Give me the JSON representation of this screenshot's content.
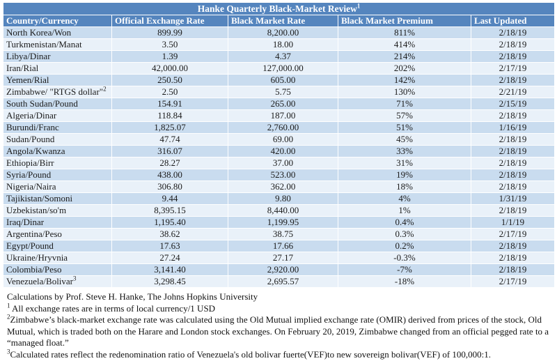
{
  "title": {
    "text": "Hanke Quarterly Black-Market Review",
    "footnote_ref": "1"
  },
  "table": {
    "columns": [
      "Country/Currency",
      "Official Exchange Rate",
      "Black Market Rate",
      "Black Market Premium",
      "Last Updated"
    ],
    "rows": [
      {
        "country": "North Korea/Won",
        "official": "899.99",
        "black": "8,200.00",
        "premium": "811%",
        "updated": "2/18/19"
      },
      {
        "country": "Turkmenistan/Manat",
        "official": "3.50",
        "black": "18.00",
        "premium": "414%",
        "updated": "2/18/19"
      },
      {
        "country": "Libya/Dinar",
        "official": "1.39",
        "black": "4.37",
        "premium": "214%",
        "updated": "2/18/19"
      },
      {
        "country": "Iran/Rial",
        "official": "42,000.00",
        "black": "127,000.00",
        "premium": "202%",
        "updated": "2/17/19"
      },
      {
        "country": "Yemen/Rial",
        "official": "250.50",
        "black": "605.00",
        "premium": "142%",
        "updated": "2/18/19"
      },
      {
        "country": "Zimbabwe/ \"RTGS dollar\"",
        "sup": "2",
        "official": "2.50",
        "black": "5.75",
        "premium": "130%",
        "updated": "2/21/19"
      },
      {
        "country": "South Sudan/Pound",
        "official": "154.91",
        "black": "265.00",
        "premium": "71%",
        "updated": "2/15/19"
      },
      {
        "country": "Algeria/Dinar",
        "official": "118.84",
        "black": "187.00",
        "premium": "57%",
        "updated": "2/18/19"
      },
      {
        "country": "Burundi/Franc",
        "official": "1,825.07",
        "black": "2,760.00",
        "premium": "51%",
        "updated": "1/16/19"
      },
      {
        "country": "Sudan/Pound",
        "official": "47.74",
        "black": "69.00",
        "premium": "45%",
        "updated": "2/18/19"
      },
      {
        "country": "Angola/Kwanza",
        "official": "316.07",
        "black": "420.00",
        "premium": "33%",
        "updated": "2/18/19"
      },
      {
        "country": "Ethiopia/Birr",
        "official": "28.27",
        "black": "37.00",
        "premium": "31%",
        "updated": "2/18/19"
      },
      {
        "country": "Syria/Pound",
        "official": "438.00",
        "black": "523.00",
        "premium": "19%",
        "updated": "2/18/19"
      },
      {
        "country": "Nigeria/Naira",
        "official": "306.80",
        "black": "362.00",
        "premium": "18%",
        "updated": "2/18/19"
      },
      {
        "country": "Tajikistan/Somoni",
        "official": "9.44",
        "black": "9.80",
        "premium": "4%",
        "updated": "1/31/19"
      },
      {
        "country": "Uzbekistan/so'm",
        "official": "8,395.15",
        "black": "8,440.00",
        "premium": "1%",
        "updated": "2/18/19"
      },
      {
        "country": "Iraq/Dinar",
        "official": "1,195.40",
        "black": "1,199.95",
        "premium": "0.4%",
        "updated": "1/1/19"
      },
      {
        "country": "Argentina/Peso",
        "official": "38.62",
        "black": "38.75",
        "premium": "0.3%",
        "updated": "2/17/19"
      },
      {
        "country": "Egypt/Pound",
        "official": "17.63",
        "black": "17.66",
        "premium": "0.2%",
        "updated": "2/18/19"
      },
      {
        "country": "Ukraine/Hryvnia",
        "official": "27.24",
        "black": "27.17",
        "premium": "-0.3%",
        "updated": "2/18/19"
      },
      {
        "country": "Colombia/Peso",
        "official": "3,141.40",
        "black": "2,920.00",
        "premium": "-7%",
        "updated": "2/18/19"
      },
      {
        "country": "Venezuela/Bolivar",
        "sup": "3",
        "official": "3,298.45",
        "black": "2,695.57",
        "premium": "-18%",
        "updated": "2/17/19"
      }
    ]
  },
  "footer": {
    "credit": "Calculations by Prof. Steve H. Hanke, The Johns Hopkins University",
    "notes": [
      {
        "sup": "1",
        "text": " All exchange rates are in terms of local currency/1 USD"
      },
      {
        "sup": "2",
        "text": "Zimbabwe’s black-market exchange rate was calculated using the Old Mutual implied exchange rate (OMIR) derived from prices of the stock, Old Mutual, which is traded both on the Harare and London stock exchanges. On February 20, 2019, Zimbabwe changed from an official pegged rate to a “managed float.”"
      },
      {
        "sup": "3",
        "text": "Calculated rates reflect the redenomination ratio of Venezuela's old bolivar fuerte(VEF)to new sovereign bolivar(VEF) of 100,000:1."
      }
    ]
  },
  "colors": {
    "header_blue": "#5585be",
    "band_blue": "#c9dcef",
    "band_light": "#e9f1f9",
    "border_blue": "#6f9ac9"
  }
}
